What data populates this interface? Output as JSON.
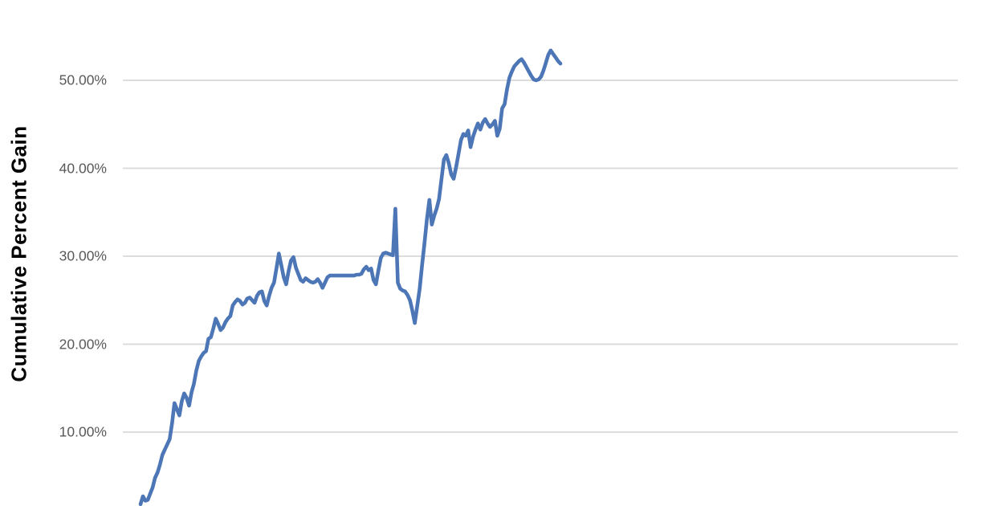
{
  "colors": {
    "line": "#4D76B6",
    "gridline": "#D8D8D8",
    "tick_label": "#595959",
    "axis_title": "#000000",
    "background": "#FFFFFF"
  },
  "chart_data": {
    "type": "line",
    "title": "",
    "xlabel": "",
    "ylabel": "Cumulative Percent Gain",
    "legend": "none",
    "grid": "horizontal",
    "x_axis_visible": false,
    "ylim_visible": [
      0,
      55
    ],
    "y_ticks": [
      {
        "value": 10,
        "label": "10.00%"
      },
      {
        "value": 20,
        "label": "20.00%"
      },
      {
        "value": 30,
        "label": "30.00%"
      },
      {
        "value": 40,
        "label": "40.00%"
      },
      {
        "value": 50,
        "label": "50.00%"
      }
    ],
    "series": [
      {
        "name": "cumulative_percent_gain",
        "unit": "%",
        "values": [
          1.8,
          2.7,
          2.2,
          2.3,
          3.0,
          3.7,
          4.8,
          5.4,
          6.3,
          7.4,
          8.0,
          8.6,
          9.2,
          11.0,
          13.3,
          12.6,
          11.9,
          13.5,
          14.4,
          13.9,
          13.0,
          14.5,
          15.5,
          17.0,
          18.1,
          18.6,
          19.0,
          19.2,
          20.6,
          20.8,
          21.8,
          22.9,
          22.3,
          21.6,
          21.9,
          22.5,
          22.9,
          23.2,
          24.4,
          24.8,
          25.1,
          24.9,
          24.5,
          24.7,
          25.2,
          25.3,
          25.0,
          24.7,
          25.5,
          25.9,
          26.0,
          24.9,
          24.4,
          25.5,
          26.4,
          27.0,
          28.6,
          30.3,
          29.0,
          27.6,
          26.8,
          28.3,
          29.5,
          29.9,
          28.7,
          28.0,
          27.3,
          27.1,
          27.5,
          27.3,
          27.1,
          27.0,
          27.1,
          27.4,
          27.0,
          26.4,
          27.0,
          27.6,
          27.8,
          27.8,
          27.8,
          27.8,
          27.8,
          27.8,
          27.8,
          27.8,
          27.8,
          27.8,
          27.8,
          27.9,
          27.9,
          28.0,
          28.5,
          28.8,
          28.4,
          28.6,
          27.3,
          26.8,
          28.4,
          29.8,
          30.3,
          30.4,
          30.3,
          30.2,
          30.1,
          35.4,
          27.0,
          26.3,
          26.1,
          26.0,
          25.6,
          25.0,
          23.8,
          22.4,
          24.3,
          26.3,
          29.0,
          31.5,
          34.2,
          36.4,
          33.6,
          34.6,
          35.4,
          36.5,
          38.8,
          41.0,
          41.5,
          40.6,
          39.3,
          38.8,
          40.1,
          41.6,
          43.2,
          43.9,
          43.7,
          44.3,
          42.4,
          43.6,
          44.4,
          45.1,
          44.4,
          45.2,
          45.6,
          45.1,
          44.7,
          45.0,
          45.4,
          43.7,
          44.5,
          46.8,
          47.3,
          49.0,
          50.3,
          51.0,
          51.6,
          51.9,
          52.2,
          52.4,
          52.0,
          51.5,
          51.0,
          50.5,
          50.1,
          50.0,
          50.1,
          50.4,
          51.1,
          52.0,
          52.9,
          53.4,
          53.0,
          52.6,
          52.2,
          51.9
        ]
      }
    ]
  }
}
